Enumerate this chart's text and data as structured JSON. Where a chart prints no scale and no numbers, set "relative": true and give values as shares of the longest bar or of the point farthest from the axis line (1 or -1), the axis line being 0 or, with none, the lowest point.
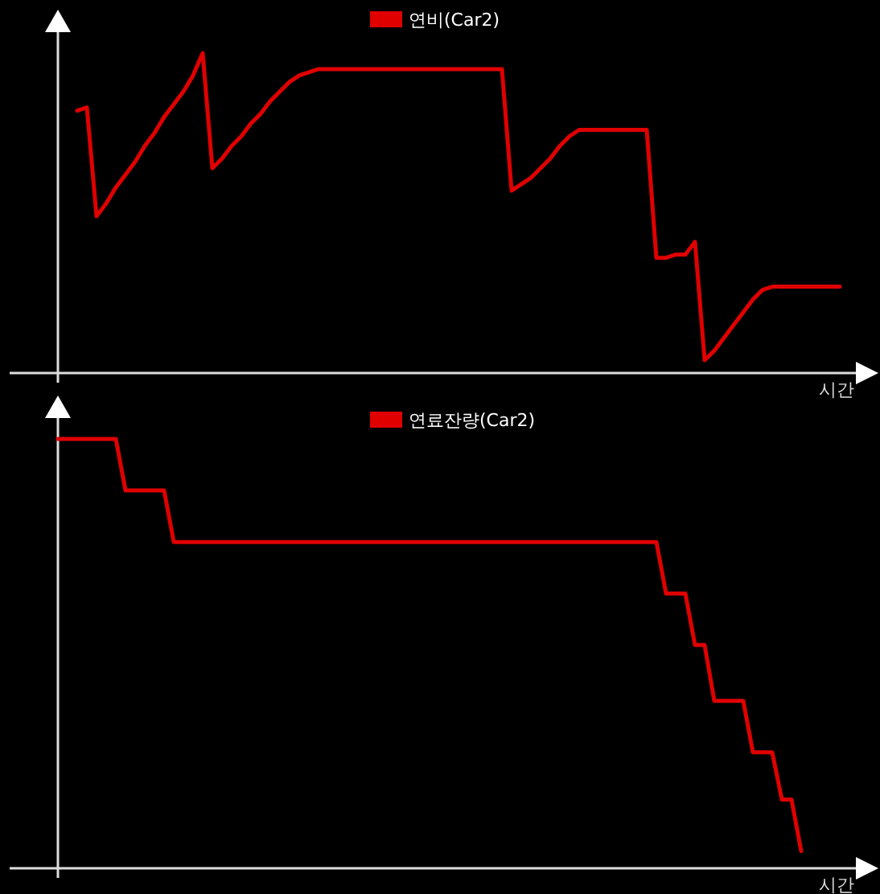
{
  "chart_data": [
    {
      "type": "line",
      "relative": true,
      "legend": "top",
      "xlabel": "시간",
      "categories": [
        null,
        null,
        null,
        null,
        null,
        null,
        null,
        null,
        null,
        null,
        null,
        null,
        null,
        null,
        null,
        null,
        null,
        null,
        null,
        null,
        null,
        null,
        null,
        null,
        null,
        null,
        null,
        null,
        null,
        null,
        null,
        null,
        null,
        null,
        null,
        null,
        null,
        null,
        null,
        null,
        null,
        null,
        null,
        null,
        null,
        null,
        null,
        null,
        null,
        null,
        null,
        null,
        null,
        null,
        null,
        null,
        null,
        null,
        null,
        null,
        null,
        null,
        null,
        null,
        null,
        null,
        null,
        null,
        null,
        null,
        null,
        null,
        null,
        null,
        null,
        null,
        null,
        null,
        null,
        null,
        null,
        null
      ],
      "series": [
        {
          "name": "연비(Car2)",
          "color": "#e00000",
          "values": [
            null,
            null,
            0.82,
            0.83,
            0.49,
            0.53,
            0.58,
            0.62,
            0.66,
            0.71,
            0.75,
            0.8,
            0.84,
            0.88,
            0.93,
            1.0,
            0.64,
            0.67,
            0.71,
            0.74,
            0.78,
            0.81,
            0.85,
            0.88,
            0.91,
            0.93,
            0.94,
            0.95,
            0.95,
            0.95,
            0.95,
            0.95,
            0.95,
            0.95,
            0.95,
            0.95,
            0.95,
            0.95,
            0.95,
            0.95,
            0.95,
            0.95,
            0.95,
            0.95,
            0.95,
            0.95,
            0.95,
            0.57,
            0.59,
            0.61,
            0.64,
            0.67,
            0.71,
            0.74,
            0.76,
            0.76,
            0.76,
            0.76,
            0.76,
            0.76,
            0.76,
            0.76,
            0.36,
            0.36,
            0.37,
            0.37,
            0.41,
            0.04,
            0.07,
            0.11,
            0.15,
            0.19,
            0.23,
            0.26,
            0.27,
            0.27,
            0.27,
            0.27,
            0.27,
            0.27,
            0.27,
            0.27
          ]
        }
      ]
    },
    {
      "type": "line",
      "relative": true,
      "legend": "top",
      "xlabel": "시간",
      "categories": [
        null,
        null,
        null,
        null,
        null,
        null,
        null,
        null,
        null,
        null,
        null,
        null,
        null,
        null,
        null,
        null,
        null,
        null,
        null,
        null,
        null,
        null,
        null,
        null,
        null,
        null,
        null,
        null,
        null,
        null,
        null,
        null,
        null,
        null,
        null,
        null,
        null,
        null,
        null,
        null,
        null,
        null,
        null,
        null,
        null,
        null,
        null,
        null,
        null,
        null,
        null,
        null,
        null,
        null,
        null,
        null,
        null,
        null,
        null,
        null,
        null,
        null,
        null,
        null,
        null,
        null,
        null,
        null,
        null,
        null,
        null,
        null,
        null,
        null,
        null,
        null,
        null,
        null,
        null,
        null,
        null,
        null
      ],
      "series": [
        {
          "name": "연료잔량(Car2)",
          "color": "#e00000",
          "values": [
            1.0,
            1.0,
            1.0,
            1.0,
            1.0,
            1.0,
            1.0,
            0.88,
            0.88,
            0.88,
            0.88,
            0.88,
            0.76,
            0.76,
            0.76,
            0.76,
            0.76,
            0.76,
            0.76,
            0.76,
            0.76,
            0.76,
            0.76,
            0.76,
            0.76,
            0.76,
            0.76,
            0.76,
            0.76,
            0.76,
            0.76,
            0.76,
            0.76,
            0.76,
            0.76,
            0.76,
            0.76,
            0.76,
            0.76,
            0.76,
            0.76,
            0.76,
            0.76,
            0.76,
            0.76,
            0.76,
            0.76,
            0.76,
            0.76,
            0.76,
            0.76,
            0.76,
            0.76,
            0.76,
            0.76,
            0.76,
            0.76,
            0.76,
            0.76,
            0.76,
            0.76,
            0.76,
            0.76,
            0.64,
            0.64,
            0.64,
            0.52,
            0.52,
            0.39,
            0.39,
            0.39,
            0.39,
            0.27,
            0.27,
            0.27,
            0.16,
            0.16,
            0.04,
            null,
            null,
            null,
            null
          ]
        }
      ]
    }
  ]
}
